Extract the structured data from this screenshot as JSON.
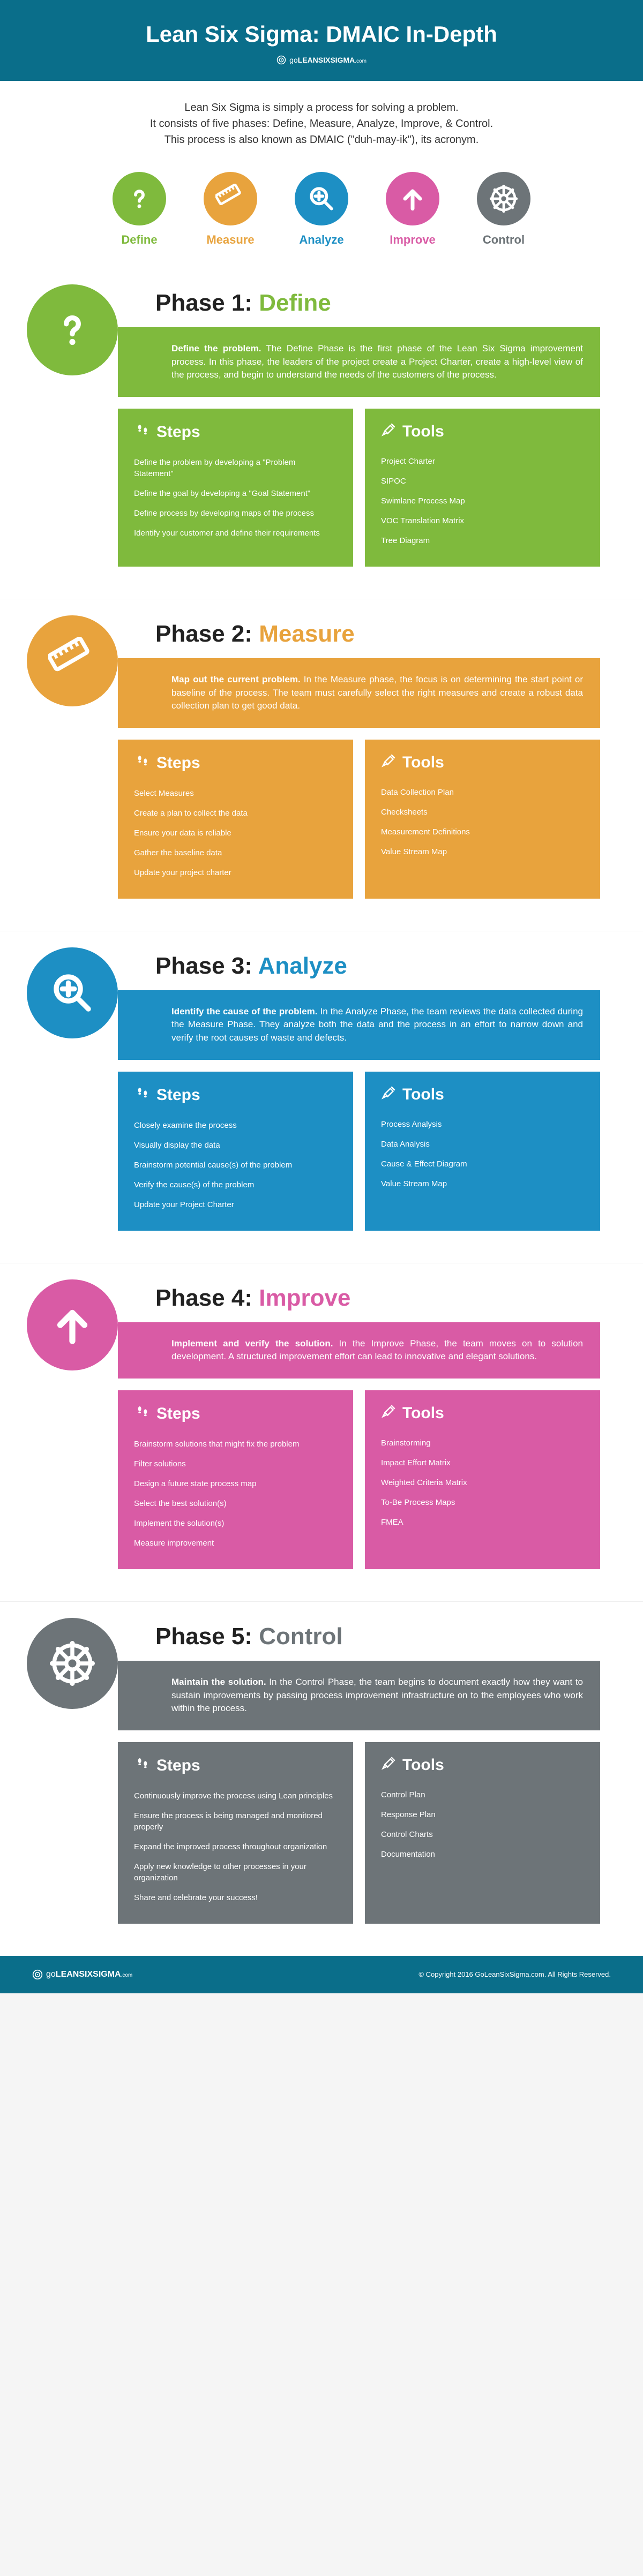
{
  "header": {
    "title": "Lean Six Sigma: DMAIC In-Depth",
    "brand_prefix": "go",
    "brand_mid": "LEANSIXSIGMA",
    "brand_suffix": ".com"
  },
  "intro": {
    "line1": "Lean Six Sigma is simply a process for solving a problem.",
    "line2": "It consists of five phases: Define, Measure, Analyze, Improve, & Control.",
    "line3": "This process is also known as DMAIC (\"duh-may-ik\"), its acronym."
  },
  "dmaic": [
    {
      "label": "Define",
      "color": "#7fba3d",
      "icon": "question"
    },
    {
      "label": "Measure",
      "color": "#e8a33d",
      "icon": "ruler"
    },
    {
      "label": "Analyze",
      "color": "#1d8fc4",
      "icon": "zoom"
    },
    {
      "label": "Improve",
      "color": "#d95ba5",
      "icon": "arrow-up"
    },
    {
      "label": "Control",
      "color": "#6d7478",
      "icon": "wheel"
    }
  ],
  "phases": [
    {
      "num": "1",
      "name": "Define",
      "color": "#7fba3d",
      "icon": "question",
      "desc_bold": "Define the problem.",
      "desc": " The Define Phase is the first phase of the Lean Six Sigma improvement process. In this phase, the leaders of the project create a Project Charter, create a high-level view of the process, and begin to understand the needs of the customers of the process.",
      "steps": [
        "Define the problem by developing a \"Problem Statement\"",
        "Define the goal by developing a \"Goal Statement\"",
        "Define process by developing maps of the process",
        "Identify your customer and define their requirements"
      ],
      "tools": [
        "Project Charter",
        "SIPOC",
        "Swimlane Process Map",
        "VOC Translation Matrix",
        "Tree Diagram"
      ]
    },
    {
      "num": "2",
      "name": "Measure",
      "color": "#e8a33d",
      "icon": "ruler",
      "desc_bold": "Map out the current problem.",
      "desc": " In the Measure phase, the focus is on determining the start point or baseline of the process. The team must carefully select the right measures and create a robust data collection plan to get good data.",
      "steps": [
        "Select Measures",
        "Create a plan to collect the data",
        "Ensure your data is reliable",
        "Gather the baseline data",
        "Update your project charter"
      ],
      "tools": [
        "Data Collection Plan",
        "Checksheets",
        "Measurement Definitions",
        "Value Stream Map"
      ]
    },
    {
      "num": "3",
      "name": "Analyze",
      "color": "#1d8fc4",
      "icon": "zoom",
      "desc_bold": "Identify the cause of the problem.",
      "desc": " In the Analyze Phase, the team reviews the data collected during the Measure Phase. They analyze both the data and the process in an effort to narrow down and verify the root causes of waste and defects.",
      "steps": [
        "Closely examine the process",
        "Visually display the data",
        "Brainstorm potential cause(s) of the problem",
        "Verify the cause(s) of the problem",
        "Update your Project Charter"
      ],
      "tools": [
        "Process Analysis",
        "Data Analysis",
        "Cause & Effect Diagram",
        "Value Stream Map"
      ]
    },
    {
      "num": "4",
      "name": "Improve",
      "color": "#d95ba5",
      "icon": "arrow-up",
      "desc_bold": "Implement and verify the solution.",
      "desc": " In the Improve Phase, the team moves on to solution development. A structured improvement effort can lead to innovative and elegant solutions.",
      "steps": [
        "Brainstorm solutions that might fix the problem",
        "Filter solutions",
        "Design a future state process map",
        "Select the best solution(s)",
        "Implement the solution(s)",
        "Measure improvement"
      ],
      "tools": [
        "Brainstorming",
        "Impact Effort Matrix",
        "Weighted Criteria Matrix",
        "To-Be Process Maps",
        "FMEA"
      ]
    },
    {
      "num": "5",
      "name": "Control",
      "color": "#6d7478",
      "icon": "wheel",
      "desc_bold": "Maintain the solution.",
      "desc": " In the Control Phase, the team begins to document exactly how they want to sustain improvements by passing process improvement infrastructure on to the employees who work within the process.",
      "steps": [
        "Continuously improve the process using Lean principles",
        "Ensure the process is being managed and monitored properly",
        "Expand the improved process throughout organization",
        "Apply new knowledge to other processes in your organization",
        "Share and celebrate your success!"
      ],
      "tools": [
        "Control Plan",
        "Response Plan",
        "Control Charts",
        "Documentation"
      ]
    }
  ],
  "labels": {
    "steps": "Steps",
    "tools": "Tools"
  },
  "footer": {
    "copyright": "© Copyright 2016 GoLeanSixSigma.com. All Rights Reserved."
  }
}
